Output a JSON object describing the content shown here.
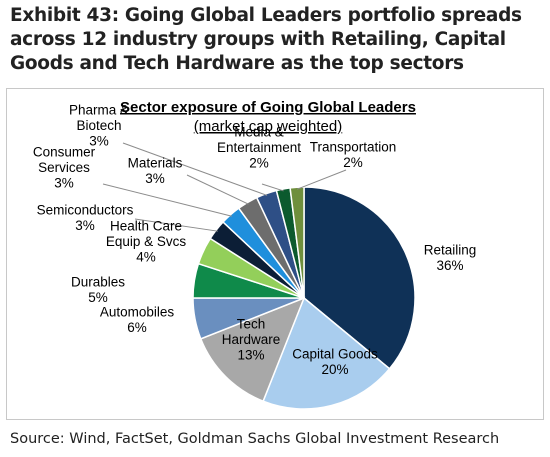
{
  "exhibit_title": "Exhibit 43: Going Global Leaders portfolio spreads across 12 industry groups with Retailing, Capital Goods and Tech Hardware as the top sectors",
  "source": "Source: Wind, FactSet, Goldman Sachs Global Investment Research",
  "chart_data": {
    "type": "pie",
    "title": "Sector exposure of Going Global Leaders",
    "subtitle": "(market cap weighted)",
    "slices": [
      {
        "label": [
          "Retailing"
        ],
        "value": 36,
        "value_label": "36%",
        "color": "#0f3157"
      },
      {
        "label": [
          "Capital Goods"
        ],
        "value": 20,
        "value_label": "20%",
        "color": "#a9cdee"
      },
      {
        "label": [
          "Tech",
          "Hardware"
        ],
        "value": 13,
        "value_label": "13%",
        "color": "#a8a8a8"
      },
      {
        "label": [
          "Automobiles"
        ],
        "value": 6,
        "value_label": "6%",
        "color": "#6a8fbf"
      },
      {
        "label": [
          "Durables"
        ],
        "value": 5,
        "value_label": "5%",
        "color": "#0f8a4a"
      },
      {
        "label": [
          "Health Care",
          "Equip & Svcs"
        ],
        "value": 4,
        "value_label": "4%",
        "color": "#93cf5a"
      },
      {
        "label": [
          "Semiconductors"
        ],
        "value": 3,
        "value_label": "3%",
        "color": "#0c1e36"
      },
      {
        "label": [
          "Consumer",
          "Services"
        ],
        "value": 3,
        "value_label": "3%",
        "color": "#1f8fdc"
      },
      {
        "label": [
          "Materials"
        ],
        "value": 3,
        "value_label": "3%",
        "color": "#6d6d6d"
      },
      {
        "label": [
          "Pharma &",
          "Biotech"
        ],
        "value": 3,
        "value_label": "3%",
        "color": "#2e4f86"
      },
      {
        "label": [
          "Media &",
          "Entertainment"
        ],
        "value": 2,
        "value_label": "2%",
        "color": "#0c5a2e"
      },
      {
        "label": [
          "Transportation"
        ],
        "value": 2,
        "value_label": "2%",
        "color": "#6f8f3c"
      }
    ]
  }
}
